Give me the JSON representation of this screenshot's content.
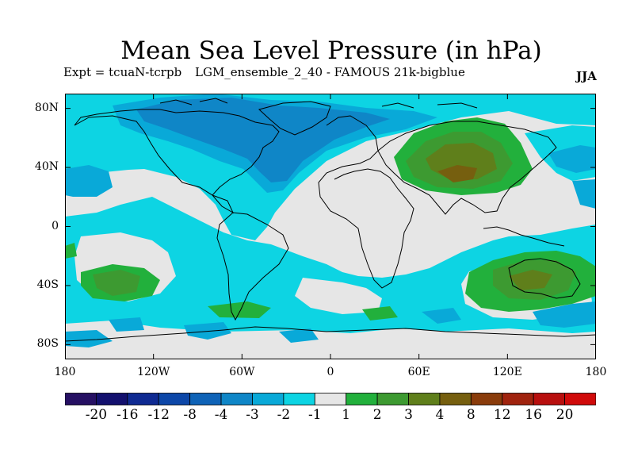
{
  "title": "Mean Sea Level Pressure (in hPa)",
  "expt_label": "Expt = tcuaN-tcrpb",
  "run_label": "LGM_ensemble_2_40 - FAMOUS 21k-bigblue",
  "season": "JJA",
  "lat_labels": [
    "80N",
    "40N",
    "0",
    "40S",
    "80S"
  ],
  "lat_values": [
    80,
    40,
    0,
    -40,
    -80
  ],
  "lon_labels": [
    "180",
    "120W",
    "60W",
    "0",
    "60E",
    "120E",
    "180"
  ],
  "lon_values": [
    -180,
    -120,
    -60,
    0,
    60,
    120,
    180
  ],
  "colorbar": {
    "colors": [
      "#261063",
      "#13106e",
      "#0f2a92",
      "#0d47a8",
      "#0f63b7",
      "#0f86c7",
      "#09a9d8",
      "#0dd4e3",
      "#e6e6e6",
      "#22b03c",
      "#3d9a31",
      "#5f7f1b",
      "#765f0f",
      "#8a3c0b",
      "#a0230e",
      "#b80f0e",
      "#d00a0a"
    ],
    "labels": [
      "-20",
      "-16",
      "-12",
      "-8",
      "-4",
      "-3",
      "-2",
      "-1",
      "1",
      "2",
      "3",
      "4",
      "8",
      "12",
      "16",
      "20"
    ]
  }
}
